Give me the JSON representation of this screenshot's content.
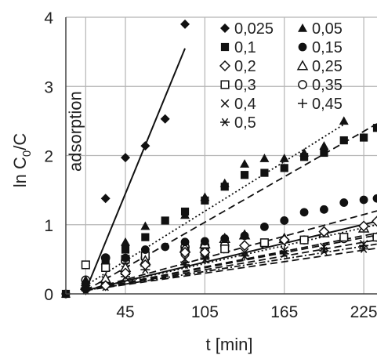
{
  "chart_data": {
    "type": "scatter",
    "xlabel": "t [min]",
    "ylabel_main": "ln C",
    "ylabel_sub": "0",
    "ylabel_tail": "/C",
    "xlim": [
      0,
      235
    ],
    "ylim": [
      0,
      4
    ],
    "xticks": [
      "45",
      "105",
      "165",
      "225"
    ],
    "yticks": [
      "0",
      "1",
      "2",
      "3",
      "4"
    ],
    "grid": true,
    "legend_position": "top-right",
    "annotation": {
      "text": "adsorption",
      "x": 15,
      "y": 2.35
    },
    "series": [
      {
        "name": "0,025",
        "marker": "diamond-filled",
        "line": "solid",
        "fit": [
          [
            15,
            0.05
          ],
          [
            90,
            3.55
          ]
        ],
        "points": [
          [
            0,
            0
          ],
          [
            15,
            0.05
          ],
          [
            30,
            1.38
          ],
          [
            45,
            1.97
          ],
          [
            60,
            2.14
          ],
          [
            75,
            2.53
          ],
          [
            90,
            3.9
          ]
        ]
      },
      {
        "name": "0,05",
        "marker": "triangle-filled",
        "line": "dotted",
        "fit": [
          [
            15,
            0.12
          ],
          [
            210,
            2.45
          ]
        ],
        "points": [
          [
            0,
            0
          ],
          [
            15,
            0.2
          ],
          [
            30,
            0.48
          ],
          [
            45,
            0.75
          ],
          [
            60,
            0.98
          ],
          [
            90,
            1.14
          ],
          [
            105,
            1.4
          ],
          [
            120,
            1.6
          ],
          [
            135,
            1.88
          ],
          [
            150,
            1.96
          ],
          [
            165,
            1.96
          ],
          [
            180,
            2.04
          ],
          [
            195,
            2.14
          ],
          [
            210,
            2.5
          ]
        ]
      },
      {
        "name": "0,1",
        "marker": "square-filled",
        "line": "dashed",
        "fit": [
          [
            15,
            0.05
          ],
          [
            235,
            2.46
          ]
        ],
        "points": [
          [
            0,
            0
          ],
          [
            15,
            0.12
          ],
          [
            30,
            0.5
          ],
          [
            45,
            0.64
          ],
          [
            60,
            0.82
          ],
          [
            75,
            1.06
          ],
          [
            90,
            1.19
          ],
          [
            105,
            1.35
          ],
          [
            120,
            1.55
          ],
          [
            135,
            1.72
          ],
          [
            150,
            1.75
          ],
          [
            165,
            1.82
          ],
          [
            180,
            1.98
          ],
          [
            195,
            2.04
          ],
          [
            210,
            2.22
          ],
          [
            225,
            2.26
          ],
          [
            235,
            2.4
          ]
        ]
      },
      {
        "name": "0,15",
        "marker": "circle-filled",
        "line": "dashed",
        "fit": [
          [
            15,
            0.05
          ],
          [
            235,
            1.2
          ]
        ],
        "points": [
          [
            0,
            0
          ],
          [
            15,
            0.15
          ],
          [
            30,
            0.52
          ],
          [
            45,
            0.52
          ],
          [
            60,
            0.64
          ],
          [
            75,
            0.68
          ],
          [
            90,
            0.75
          ],
          [
            105,
            0.76
          ],
          [
            120,
            0.8
          ],
          [
            135,
            0.84
          ],
          [
            150,
            0.97
          ],
          [
            165,
            1.06
          ],
          [
            180,
            1.18
          ],
          [
            195,
            1.22
          ],
          [
            210,
            1.32
          ],
          [
            225,
            1.36
          ],
          [
            235,
            1.38
          ]
        ]
      },
      {
        "name": "0,2",
        "marker": "diamond-open",
        "line": "solid",
        "fit": [
          [
            15,
            0.05
          ],
          [
            235,
            1.05
          ]
        ],
        "points": [
          [
            15,
            0.08
          ],
          [
            30,
            0.12
          ],
          [
            45,
            0.3
          ],
          [
            60,
            0.42
          ],
          [
            90,
            0.6
          ],
          [
            105,
            0.6
          ],
          [
            135,
            0.7
          ],
          [
            165,
            0.78
          ],
          [
            195,
            0.9
          ],
          [
            225,
            0.98
          ],
          [
            235,
            1.05
          ]
        ]
      },
      {
        "name": "0,25",
        "marker": "triangle-open",
        "line": "dotted",
        "fit": [
          [
            15,
            0.05
          ],
          [
            235,
            1.0
          ]
        ],
        "points": [
          [
            15,
            0.12
          ],
          [
            30,
            0.22
          ],
          [
            45,
            0.38
          ],
          [
            60,
            0.48
          ],
          [
            90,
            0.66
          ],
          [
            105,
            0.72
          ],
          [
            120,
            0.8
          ],
          [
            135,
            0.85
          ],
          [
            165,
            0.8
          ],
          [
            195,
            0.88
          ],
          [
            225,
            0.95
          ]
        ]
      },
      {
        "name": "0,3",
        "marker": "square-open",
        "line": "dashed",
        "fit": [
          [
            15,
            0.05
          ],
          [
            235,
            0.88
          ]
        ],
        "points": [
          [
            15,
            0.42
          ],
          [
            30,
            0.38
          ],
          [
            45,
            0.5
          ],
          [
            60,
            0.55
          ],
          [
            90,
            0.62
          ],
          [
            105,
            0.6
          ],
          [
            120,
            0.65
          ],
          [
            150,
            0.74
          ],
          [
            180,
            0.78
          ],
          [
            210,
            0.82
          ],
          [
            235,
            0.82
          ]
        ]
      },
      {
        "name": "0,35",
        "marker": "circle-open",
        "line": "dashed",
        "fit": [
          [
            15,
            0.05
          ],
          [
            235,
            0.85
          ]
        ],
        "points": [
          [
            15,
            0.2
          ],
          [
            30,
            0.52
          ],
          [
            45,
            0.48
          ],
          [
            60,
            0.52
          ],
          [
            90,
            0.68
          ],
          [
            105,
            0.7
          ],
          [
            120,
            0.7
          ],
          [
            150,
            0.72
          ],
          [
            180,
            0.78
          ],
          [
            210,
            0.8
          ],
          [
            235,
            0.82
          ]
        ]
      },
      {
        "name": "0,4",
        "marker": "x",
        "line": "dashed",
        "fit": [
          [
            15,
            0.05
          ],
          [
            235,
            0.78
          ]
        ],
        "points": [
          [
            15,
            0.1
          ],
          [
            30,
            0.2
          ],
          [
            45,
            0.35
          ],
          [
            60,
            0.5
          ],
          [
            90,
            0.5
          ],
          [
            105,
            0.55
          ],
          [
            135,
            0.6
          ],
          [
            165,
            0.63
          ],
          [
            195,
            0.68
          ],
          [
            225,
            0.72
          ]
        ]
      },
      {
        "name": "0,45",
        "marker": "plus",
        "line": "dashdot",
        "fit": [
          [
            15,
            0.05
          ],
          [
            235,
            0.72
          ]
        ],
        "points": [
          [
            15,
            0.12
          ],
          [
            30,
            0.15
          ],
          [
            45,
            0.28
          ],
          [
            60,
            0.4
          ],
          [
            90,
            0.46
          ],
          [
            105,
            0.52
          ],
          [
            135,
            0.55
          ],
          [
            165,
            0.62
          ],
          [
            195,
            0.66
          ],
          [
            225,
            0.7
          ]
        ]
      },
      {
        "name": "0,5",
        "marker": "asterisk",
        "line": "dashed",
        "fit": [
          [
            15,
            0.05
          ],
          [
            235,
            0.66
          ]
        ],
        "points": [
          [
            15,
            0.05
          ],
          [
            30,
            0.1
          ],
          [
            45,
            0.25
          ],
          [
            60,
            0.35
          ],
          [
            90,
            0.42
          ],
          [
            105,
            0.5
          ],
          [
            135,
            0.55
          ],
          [
            165,
            0.58
          ],
          [
            195,
            0.62
          ],
          [
            225,
            0.65
          ]
        ]
      }
    ]
  }
}
